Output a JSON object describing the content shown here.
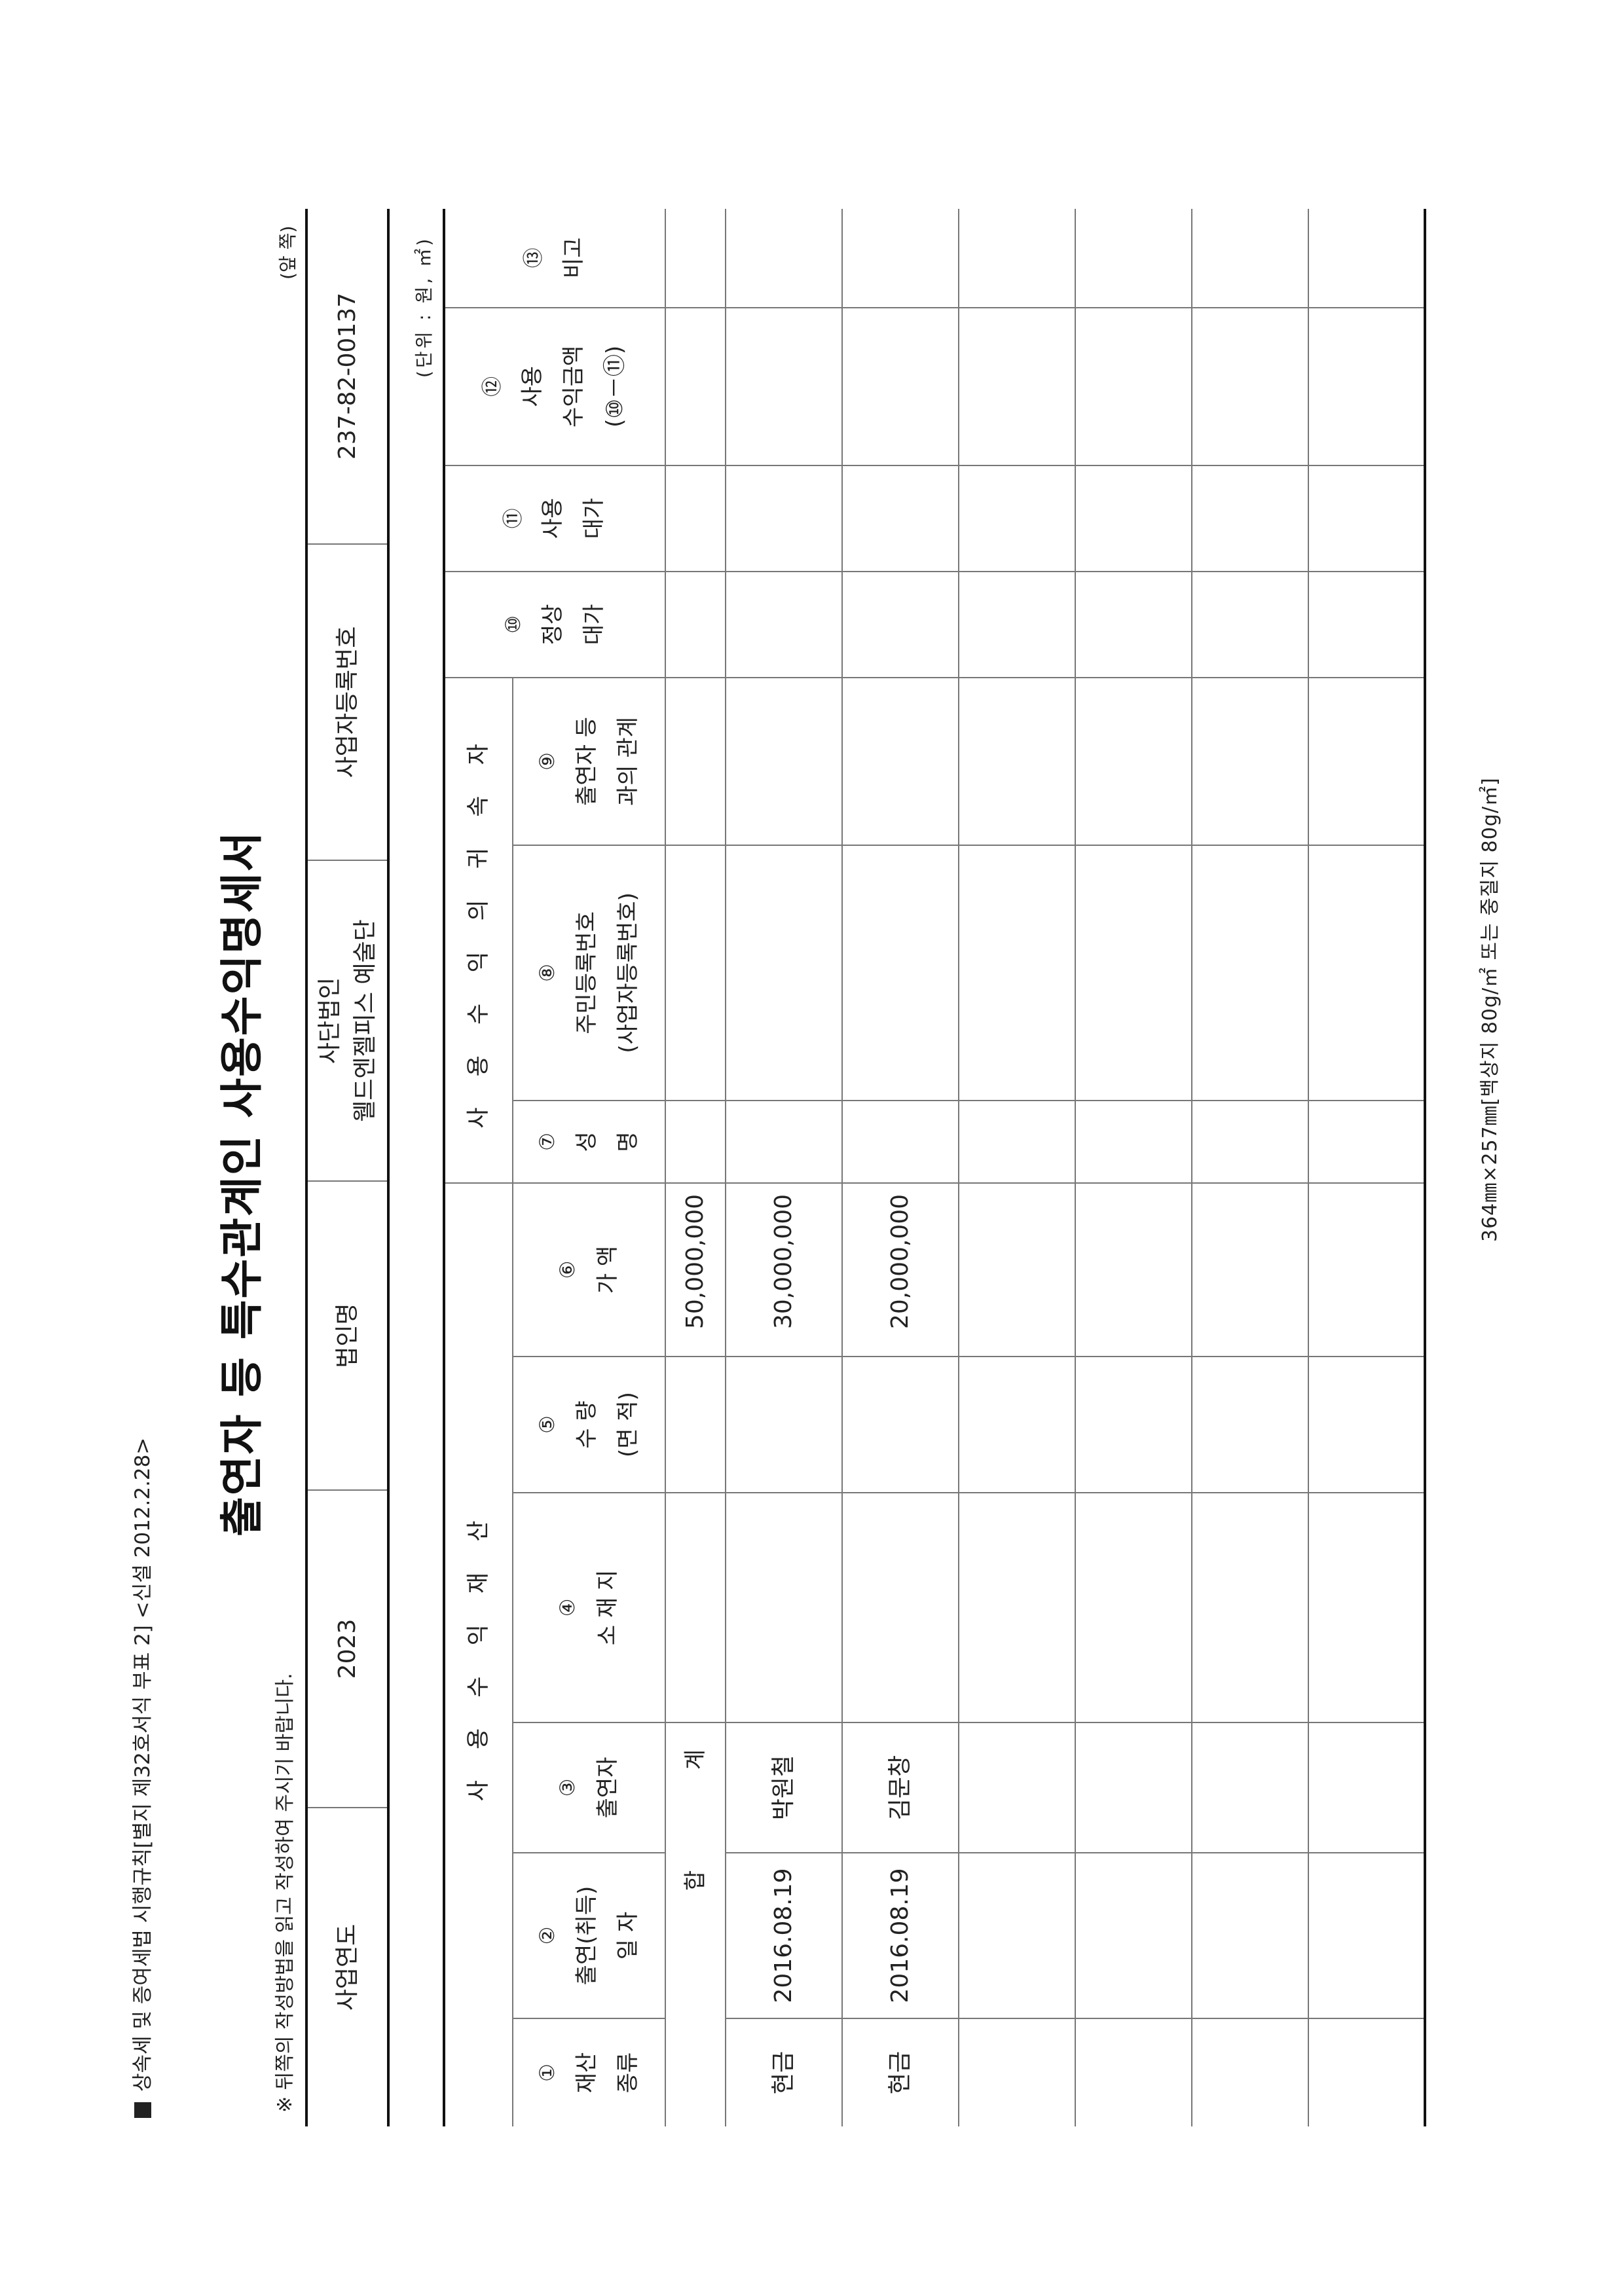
{
  "header": {
    "form_reference": "상속세 및 증여세법 시행규칙[별지 제32호서식 부표 2] <신설 2012.2.28>",
    "title": "출연자 등 특수관계인 사용수익명세서",
    "note": "※ 뒤쪽의 작성방법을 읽고 작성하여 주시기 바랍니다.",
    "page_side": "(앞 쪽)"
  },
  "info": {
    "year_label": "사업연도",
    "year_value": "2023",
    "corp_name_label": "법인명",
    "corp_name_line1": "사단법인",
    "corp_name_line2": "웰드엔젤피스 예술단",
    "biz_no_label": "사업자등록번호",
    "biz_no_value": "237-82-00137"
  },
  "unit": "(단위 : 원, ㎡)",
  "table": {
    "group_property": "사 용 수 익 재 산",
    "group_beneficiary": "사 용 수 익 의 귀 속 자",
    "columns": [
      {
        "num": "①",
        "lines": [
          "재산",
          "종류"
        ]
      },
      {
        "num": "②",
        "lines": [
          "출연(취득)",
          "일  자"
        ]
      },
      {
        "num": "③",
        "lines": [
          "출연자"
        ]
      },
      {
        "num": "④",
        "lines": [
          "소  재  지"
        ]
      },
      {
        "num": "⑤",
        "lines": [
          "수  량",
          "(면 적)"
        ]
      },
      {
        "num": "⑥",
        "lines": [
          "가  액"
        ]
      },
      {
        "num": "⑦",
        "lines": [
          "성",
          "명"
        ]
      },
      {
        "num": "⑧",
        "lines": [
          "주민등록번호",
          "(사업자등록번호)"
        ]
      },
      {
        "num": "⑨",
        "lines": [
          "출연자 등",
          "과의 관계"
        ]
      },
      {
        "num": "⑩",
        "lines": [
          "정상",
          "대가"
        ]
      },
      {
        "num": "⑪",
        "lines": [
          "사용",
          "대가"
        ]
      },
      {
        "num": "⑫",
        "lines": [
          "사용",
          "수익금액",
          "(⑩－⑪)"
        ]
      },
      {
        "num": "⑬",
        "lines": [
          "비고"
        ]
      }
    ],
    "total": {
      "label_1": "합",
      "label_2": "계",
      "value": "50,000,000"
    },
    "rows": [
      {
        "type": "현금",
        "date": "2016.08.19",
        "contributor": "박원철",
        "value": "30,000,000"
      },
      {
        "type": "현금",
        "date": "2016.08.19",
        "contributor": "김문창",
        "value": "20,000,000"
      },
      {},
      {},
      {},
      {}
    ]
  },
  "footer": "364㎜×257㎜[백상지 80g/㎡ 또는 중질지 80g/㎡]"
}
